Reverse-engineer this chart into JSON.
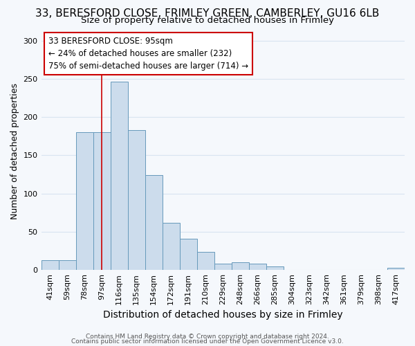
{
  "title_line1": "33, BERESFORD CLOSE, FRIMLEY GREEN, CAMBERLEY, GU16 6LB",
  "title_line2": "Size of property relative to detached houses in Frimley",
  "xlabel": "Distribution of detached houses by size in Frimley",
  "ylabel": "Number of detached properties",
  "categories": [
    "41sqm",
    "59sqm",
    "78sqm",
    "97sqm",
    "116sqm",
    "135sqm",
    "154sqm",
    "172sqm",
    "191sqm",
    "210sqm",
    "229sqm",
    "248sqm",
    "266sqm",
    "285sqm",
    "304sqm",
    "323sqm",
    "342sqm",
    "361sqm",
    "379sqm",
    "398sqm",
    "417sqm"
  ],
  "values": [
    13,
    13,
    180,
    180,
    246,
    183,
    124,
    62,
    41,
    24,
    8,
    10,
    8,
    5,
    0,
    0,
    0,
    0,
    0,
    0,
    3
  ],
  "bar_color": "#ccdcec",
  "bar_edge_color": "#6699bb",
  "vline_bin_index": 3,
  "vline_color": "#cc0000",
  "annotation_text": "33 BERESFORD CLOSE: 95sqm\n← 24% of detached houses are smaller (232)\n75% of semi-detached houses are larger (714) →",
  "annotation_box_color": "white",
  "annotation_box_edge_color": "#cc0000",
  "ylim": [
    0,
    310
  ],
  "yticks": [
    0,
    50,
    100,
    150,
    200,
    250,
    300
  ],
  "footer_line1": "Contains HM Land Registry data © Crown copyright and database right 2024.",
  "footer_line2": "Contains public sector information licensed under the Open Government Licence v3.0.",
  "bg_color": "#f5f8fc",
  "grid_color": "#d8e4f0",
  "title1_fontsize": 11,
  "title2_fontsize": 9.5,
  "xlabel_fontsize": 10,
  "ylabel_fontsize": 9,
  "tick_fontsize": 8,
  "footer_fontsize": 6.5
}
